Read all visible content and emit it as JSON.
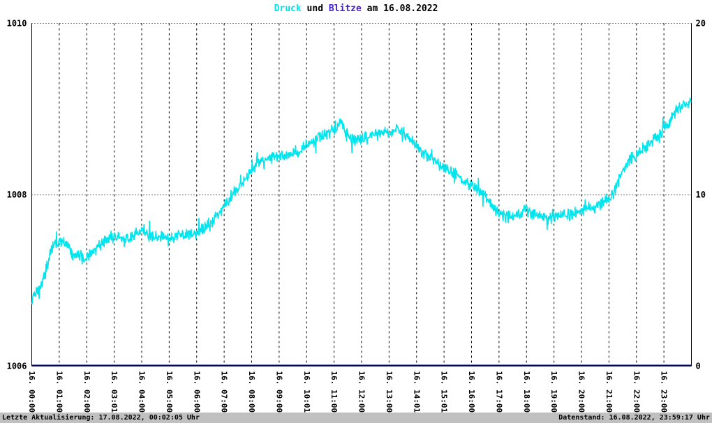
{
  "title": {
    "druck": "Druck",
    "und": " und ",
    "blitze": "Blitze",
    "rest": " am 16.08.2022",
    "full": "Druck und Blitze am 16.08.2022"
  },
  "footer": {
    "left": "Letzte Aktualisierung: 17.08.2022, 00:02:05 Uhr",
    "right": "Datenstand: 16.08.2022, 23:59:17 Uhr"
  },
  "chart_data": {
    "type": "line",
    "title": "Druck und Blitze am 16.08.2022",
    "grid": true,
    "legend": "none",
    "colors": {
      "druck": "#00e5ee",
      "blitze_title": "#4422cc",
      "blitze_line": "#000080",
      "frame": "#000000",
      "footer_bg": "#c0c0c0",
      "background": "#ffffff"
    },
    "x_hours_range": [
      0,
      24
    ],
    "x_tick_labels": [
      "16. 00:00",
      "16. 01:00",
      "16. 02:00",
      "16. 03:01",
      "16. 04:00",
      "16. 05:00",
      "16. 06:00",
      "16. 07:00",
      "16. 08:00",
      "16. 09:00",
      "16. 10:01",
      "16. 11:00",
      "16. 12:00",
      "16. 13:00",
      "16. 14:01",
      "16. 15:01",
      "16. 16:00",
      "16. 17:00",
      "16. 18:00",
      "16. 19:00",
      "16. 20:00",
      "16. 21:00",
      "16. 22:00",
      "16. 23:00"
    ],
    "y_left": {
      "min": 1006,
      "max": 1010,
      "ticks": [
        1006,
        1008,
        1010
      ]
    },
    "y_right": {
      "min": 0,
      "max": 20,
      "ticks": [
        0,
        10,
        20
      ]
    },
    "series": [
      {
        "name": "Druck",
        "axis": "left",
        "color": "#00e5ee",
        "anchors_time_h": [
          0,
          0.3,
          0.5,
          0.75,
          1,
          1.25,
          1.5,
          2,
          2.4,
          2.7,
          3,
          3.5,
          4,
          4.5,
          5,
          5.5,
          6,
          6.5,
          7,
          7.5,
          8,
          8.25,
          8.5,
          9,
          9.5,
          10,
          10.5,
          11,
          11.25,
          11.5,
          12,
          12.5,
          13,
          13.3,
          13.7,
          14,
          14.5,
          15,
          15.5,
          16,
          16.5,
          17,
          17.5,
          18,
          18.5,
          19,
          19.5,
          20,
          20.5,
          21,
          21.25,
          21.5,
          22,
          22.5,
          23,
          23.3,
          23.7,
          24
        ],
        "anchors_hpa": [
          1006.78,
          1006.92,
          1007.1,
          1007.38,
          1007.46,
          1007.42,
          1007.3,
          1007.25,
          1007.4,
          1007.46,
          1007.5,
          1007.48,
          1007.58,
          1007.5,
          1007.5,
          1007.53,
          1007.54,
          1007.66,
          1007.86,
          1008.07,
          1008.27,
          1008.4,
          1008.41,
          1008.44,
          1008.48,
          1008.56,
          1008.68,
          1008.76,
          1008.84,
          1008.68,
          1008.64,
          1008.7,
          1008.72,
          1008.76,
          1008.68,
          1008.56,
          1008.44,
          1008.31,
          1008.23,
          1008.11,
          1007.99,
          1007.78,
          1007.74,
          1007.82,
          1007.74,
          1007.73,
          1007.76,
          1007.82,
          1007.87,
          1007.95,
          1008.07,
          1008.31,
          1008.48,
          1008.6,
          1008.76,
          1008.92,
          1009.05,
          1009.1
        ],
        "noise_amplitude_hpa": 0.09,
        "spike_amplitude_hpa": 0.16,
        "spike_probability": 0.03,
        "noise_seed": 42
      },
      {
        "name": "Blitze",
        "axis": "right",
        "color": "#000080",
        "constant_value": 0
      }
    ]
  }
}
